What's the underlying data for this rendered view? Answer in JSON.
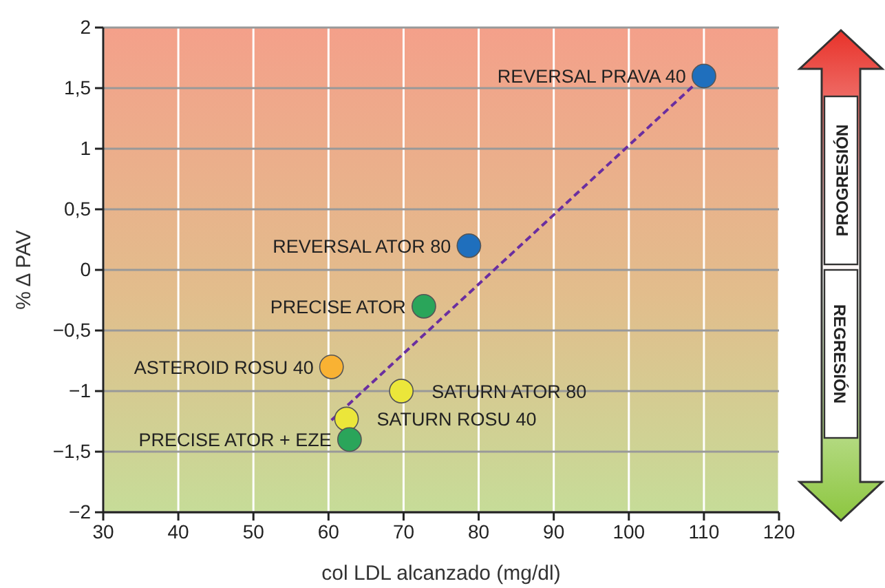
{
  "chart_data": {
    "type": "scatter",
    "xlabel": "col LDL alcanzado (mg/dl)",
    "ylabel": "% Δ PAV",
    "xlim": [
      30,
      120
    ],
    "xticks": [
      30,
      40,
      50,
      60,
      70,
      80,
      90,
      100,
      110,
      120
    ],
    "ylim": [
      -2,
      2
    ],
    "yticks": [
      {
        "value": -2,
        "label": "−2"
      },
      {
        "value": -1.5,
        "label": "−1,5"
      },
      {
        "value": -1,
        "label": "−1"
      },
      {
        "value": -0.5,
        "label": "−0,5"
      },
      {
        "value": 0,
        "label": "0"
      },
      {
        "value": 0.5,
        "label": "0,5"
      },
      {
        "value": 1,
        "label": "1"
      },
      {
        "value": 1.5,
        "label": "1,5"
      },
      {
        "value": 2,
        "label": "2"
      }
    ],
    "grid": true,
    "marker": "circle",
    "series": [
      {
        "x": [
          110,
          78.7,
          72.7,
          60.4,
          69.7,
          62.4,
          62.8
        ],
        "values": [
          1.6,
          0.2,
          -0.3,
          -0.8,
          -1.0,
          -1.23,
          -1.4
        ],
        "colors": [
          "#1f6fbd",
          "#1f6fbd",
          "#2aa55a",
          "#f9b233",
          "#ebe63a",
          "#ebe63a",
          "#2aa55a"
        ]
      },
      {
        "type": "line",
        "x": [
          60.4,
          110
        ],
        "values": [
          -1.24,
          1.6
        ],
        "color": "#6a2ea0",
        "line_style": "dashed",
        "marker": "none"
      }
    ],
    "annotations": [
      {
        "text": "REVERSAL PRAVA 40",
        "x": 110,
        "y": 1.6
      },
      {
        "text": "REVERSAL ATOR 80",
        "x": 78.7,
        "y": 0.2
      },
      {
        "text": "PRECISE ATOR",
        "x": 72.7,
        "y": -0.3
      },
      {
        "text": "ASTEROID ROSU 40",
        "x": 60.4,
        "y": -0.8
      },
      {
        "text": "SATURN ATOR 80",
        "x": 69.7,
        "y": -1.0
      },
      {
        "text": "SATURN ROSU 40",
        "x": 62.4,
        "y": -1.23
      },
      {
        "text": "PRECISE ATOR + EZE",
        "x": 62.8,
        "y": -1.4
      },
      "PROGRESIÓN",
      "REGRESIÓN"
    ]
  }
}
